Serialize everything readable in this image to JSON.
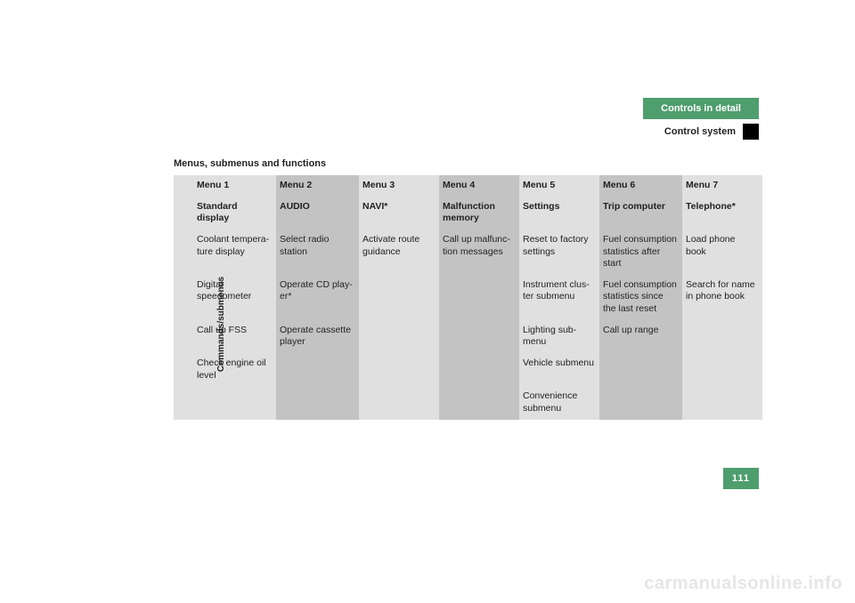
{
  "header": {
    "tab": "Controls in detail",
    "subheading": "Control system"
  },
  "section_title": "Menus, submenus and functions",
  "table": {
    "side_label": "Commands/submenus",
    "header_row1": [
      "Menu 1",
      "Menu 2",
      "Menu 3",
      "Menu 4",
      "Menu 5",
      "Menu 6",
      "Menu 7"
    ],
    "header_row2": [
      "Standard display",
      "AUDIO",
      "NAVI*",
      "Malfunction memory",
      "Settings",
      "Trip computer",
      "Telephone*"
    ],
    "rows": [
      [
        "Coolant tempera­ture display",
        "Select radio station",
        "Activate route guidance",
        "Call up malfunc­tion messages",
        "Reset to factory settings",
        "Fuel consumption statistics after start",
        "Load phone book"
      ],
      [
        "Digital speedometer",
        "Operate CD play­er*",
        "",
        "",
        "Instrument clus­ter submenu",
        "Fuel consumption statistics since the last reset",
        "Search for name in phone book"
      ],
      [
        "Call up FSS",
        "Operate cassette player",
        "",
        "",
        "Lighting sub­menu",
        "Call up range",
        ""
      ],
      [
        "Check engine oil lev­el",
        "",
        "",
        "",
        "Vehicle sub­menu",
        "",
        ""
      ],
      [
        "",
        "",
        "",
        "",
        "Convenience submenu",
        "",
        ""
      ]
    ],
    "col_shades": [
      "light",
      "dark",
      "light",
      "dark",
      "light",
      "dark",
      "light"
    ]
  },
  "page_number": "111",
  "watermark": "carmanualsonline.info",
  "colors": {
    "accent": "#4f9e6e",
    "light_cell": "#e0e0e0",
    "dark_cell": "#c3c3c3",
    "watermark": "#e6e6e6"
  }
}
